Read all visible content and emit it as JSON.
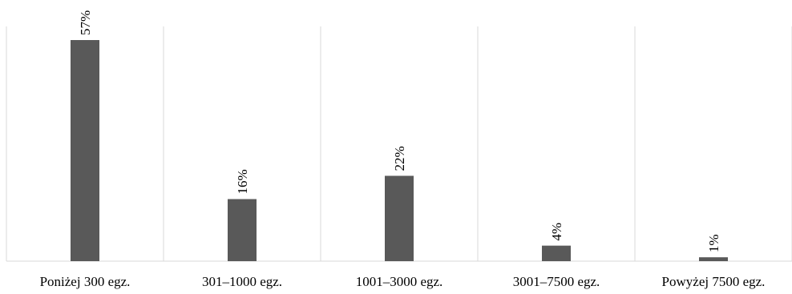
{
  "chart_data": {
    "type": "bar",
    "categories": [
      "Poniżej 300 egz.",
      "301–1000 egz.",
      "1001–3000 egz.",
      "3001–7500 egz.",
      "Powyżej 7500 egz."
    ],
    "values": [
      57,
      16,
      22,
      4,
      1
    ],
    "data_labels": [
      "57%",
      "16%",
      "22%",
      "4%",
      "1%"
    ],
    "ylim": [
      0,
      60
    ],
    "grid": "vertical category separators",
    "legend": "none",
    "colors": {
      "bar": "#595959",
      "grid": "#d9d9d9",
      "text": "#000000"
    }
  }
}
